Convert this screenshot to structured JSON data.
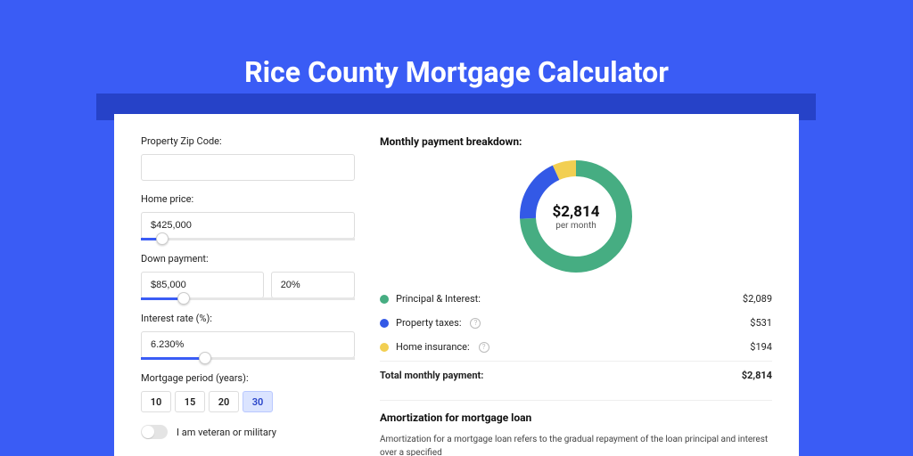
{
  "page": {
    "title": "Rice County Mortgage Calculator",
    "bg_color": "#3a5cf5",
    "shadow_color": "#2642c8"
  },
  "form": {
    "zip_label": "Property Zip Code:",
    "zip_value": "",
    "home_price_label": "Home price:",
    "home_price_value": "$425,000",
    "home_price_slider_pct": 10,
    "down_payment_label": "Down payment:",
    "down_payment_value": "$85,000",
    "down_payment_pct_value": "20%",
    "down_payment_slider_pct": 20,
    "interest_label": "Interest rate (%):",
    "interest_value": "6.230%",
    "interest_slider_pct": 30,
    "period_label": "Mortgage period (years):",
    "period_options": [
      "10",
      "15",
      "20",
      "30"
    ],
    "period_active_index": 3,
    "veteran_label": "I am veteran or military",
    "veteran_on": false
  },
  "breakdown": {
    "title": "Monthly payment breakdown:",
    "donut": {
      "value_text": "$2,814",
      "sub_text": "per month",
      "segments": [
        {
          "color": "#46ad82",
          "value": 2089
        },
        {
          "color": "#3359e6",
          "value": 531
        },
        {
          "color": "#f2cf52",
          "value": 194
        }
      ],
      "thickness": 18,
      "size": 126
    },
    "items": [
      {
        "label": "Principal & Interest:",
        "amount": "$2,089",
        "color": "#46ad82",
        "info": false
      },
      {
        "label": "Property taxes:",
        "amount": "$531",
        "color": "#3359e6",
        "info": true
      },
      {
        "label": "Home insurance:",
        "amount": "$194",
        "color": "#f2cf52",
        "info": true
      }
    ],
    "total_label": "Total monthly payment:",
    "total_amount": "$2,814"
  },
  "amortization": {
    "title": "Amortization for mortgage loan",
    "text": "Amortization for a mortgage loan refers to the gradual repayment of the loan principal and interest over a specified"
  }
}
